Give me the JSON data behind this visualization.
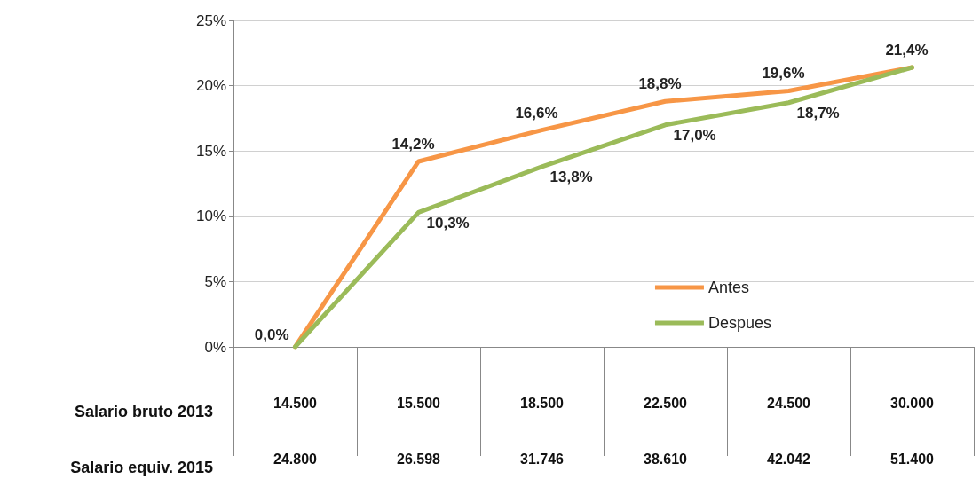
{
  "chart_data": {
    "type": "line",
    "categories": [
      "14.500\n24.800",
      "15.500\n26.598",
      "18.500\n31.746",
      "22.500\n38.610",
      "24.500\n42.042",
      "30.000\n51.400"
    ],
    "annotations": [
      "Salario bruto 2013",
      "Salario equiv. 2015"
    ],
    "series": [
      {
        "name": "Antes",
        "color": "#f79646",
        "values": [
          0,
          14.2,
          16.6,
          18.8,
          19.6,
          21.4
        ],
        "value_labels": [
          "0,0%",
          "14,2%",
          "16,6%",
          "18,8%",
          "19,6%",
          "21,4%"
        ]
      },
      {
        "name": "Despues",
        "color": "#9bbb59",
        "values": [
          0,
          10.3,
          13.8,
          17.0,
          18.7,
          21.4
        ],
        "value_labels": [
          null,
          "10,3%",
          "13,8%",
          "17,0%",
          "18,7%",
          null
        ]
      }
    ],
    "ylim": [
      0,
      25
    ],
    "yticks": [
      {
        "value": 0,
        "label": "0%"
      },
      {
        "value": 5,
        "label": "5%"
      },
      {
        "value": 10,
        "label": "10%"
      },
      {
        "value": 15,
        "label": "15%"
      },
      {
        "value": 20,
        "label": "20%"
      },
      {
        "value": 25,
        "label": "25%"
      }
    ],
    "grid": "y",
    "legend": "right",
    "marker": "none",
    "line_style": "solid"
  }
}
